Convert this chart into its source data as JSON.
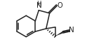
{
  "bg_color": "#ffffff",
  "line_color": "#222222",
  "line_width": 1.1,
  "figsize": [
    1.24,
    0.7
  ],
  "dpi": 100,
  "xlim": [
    0.0,
    5.8
  ],
  "ylim": [
    0.3,
    3.5
  ]
}
